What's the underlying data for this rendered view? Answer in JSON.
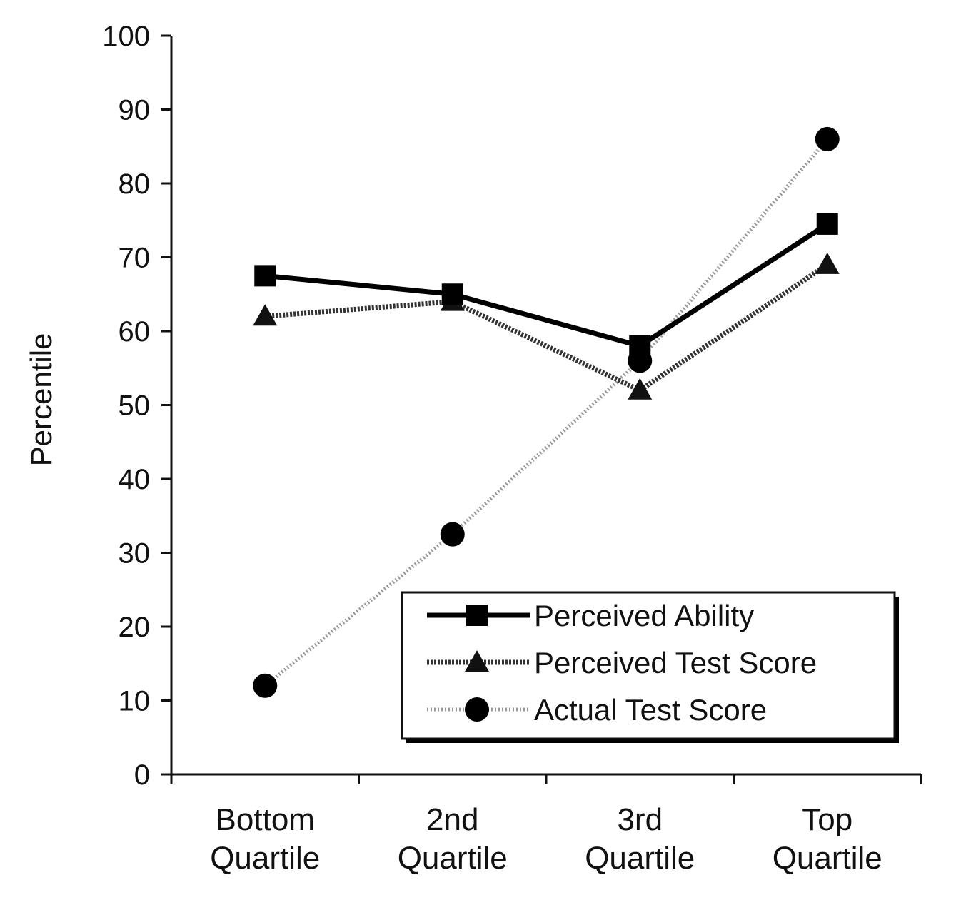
{
  "chart_data": {
    "type": "line",
    "title": "",
    "xlabel": "",
    "ylabel": "Percentile",
    "ylim": [
      0,
      100
    ],
    "yticks": [
      0,
      10,
      20,
      30,
      40,
      50,
      60,
      70,
      80,
      90,
      100
    ],
    "categories": [
      [
        "Bottom",
        "Quartile"
      ],
      [
        "2nd",
        "Quartile"
      ],
      [
        "3rd",
        "Quartile"
      ],
      [
        "Top",
        "Quartile"
      ]
    ],
    "grid": false,
    "legend_position": "bottom-right",
    "series": [
      {
        "name": "Perceived Ability",
        "values": [
          67.5,
          65,
          58,
          74.5
        ],
        "marker": "square",
        "color": "#000000",
        "style": "solid"
      },
      {
        "name": "Perceived Test Score",
        "values": [
          62,
          64,
          52,
          69
        ],
        "marker": "triangle",
        "color": "#333333",
        "style": "dense-dotted"
      },
      {
        "name": "Actual Test Score",
        "values": [
          12,
          32.5,
          56,
          86
        ],
        "marker": "circle",
        "color": "#999999",
        "style": "light-dotted"
      }
    ]
  }
}
